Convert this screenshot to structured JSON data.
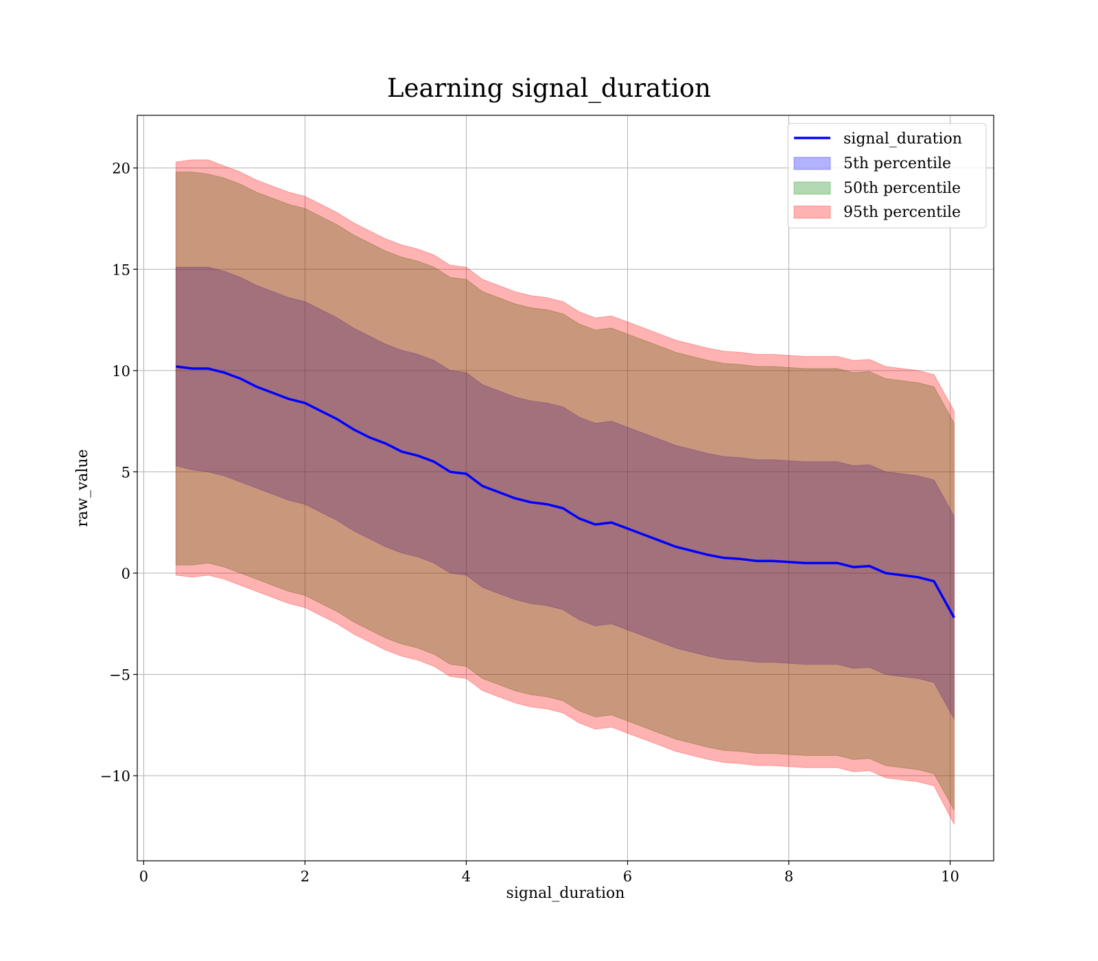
{
  "chart_data": {
    "type": "line",
    "title": "Learning signal_duration",
    "xlabel": "signal_duration",
    "ylabel": "raw_value",
    "xlim": [
      -0.08,
      10.54
    ],
    "ylim": [
      -14.2,
      22.6
    ],
    "xticks": [
      0,
      2,
      4,
      6,
      8,
      10
    ],
    "xtick_labels": [
      "0",
      "2",
      "4",
      "6",
      "8",
      "10"
    ],
    "yticks": [
      -10,
      -5,
      0,
      5,
      10,
      15,
      20
    ],
    "ytick_labels": [
      "−10",
      "−5",
      "0",
      "5",
      "10",
      "15",
      "20"
    ],
    "grid": true,
    "legend_position": "top-right",
    "colors": {
      "line": "#0000ff",
      "p5": "#0000ff",
      "p50": "#008000",
      "p95": "#ff0000",
      "grid": "#b0b0b0"
    },
    "x": [
      0.4,
      0.6,
      0.8,
      1.0,
      1.2,
      1.4,
      1.6,
      1.8,
      2.0,
      2.2,
      2.4,
      2.6,
      2.8,
      3.0,
      3.2,
      3.4,
      3.6,
      3.8,
      4.0,
      4.2,
      4.4,
      4.6,
      4.8,
      5.0,
      5.2,
      5.4,
      5.6,
      5.8,
      6.0,
      6.2,
      6.4,
      6.6,
      6.8,
      7.0,
      7.2,
      7.4,
      7.6,
      7.8,
      8.0,
      8.2,
      8.4,
      8.6,
      8.8,
      9.0,
      9.2,
      9.4,
      9.6,
      9.8,
      10.05
    ],
    "series": [
      {
        "name": "signal_duration",
        "kind": "line",
        "values": [
          10.2,
          10.1,
          10.1,
          9.9,
          9.6,
          9.2,
          8.9,
          8.6,
          8.4,
          8.0,
          7.6,
          7.1,
          6.7,
          6.4,
          6.0,
          5.8,
          5.5,
          5.0,
          4.9,
          4.3,
          4.0,
          3.7,
          3.5,
          3.4,
          3.2,
          2.7,
          2.4,
          2.5,
          2.2,
          1.9,
          1.6,
          1.3,
          1.1,
          0.9,
          0.75,
          0.7,
          0.6,
          0.6,
          0.55,
          0.5,
          0.5,
          0.5,
          0.3,
          0.35,
          0.0,
          -0.1,
          -0.2,
          -0.4,
          -2.2
        ]
      },
      {
        "name": "5th percentile",
        "kind": "band",
        "lower": [
          5.3,
          5.1,
          5.0,
          4.8,
          4.5,
          4.2,
          3.9,
          3.6,
          3.4,
          3.0,
          2.6,
          2.1,
          1.7,
          1.3,
          1.0,
          0.8,
          0.5,
          0.0,
          -0.1,
          -0.7,
          -1.0,
          -1.3,
          -1.5,
          -1.6,
          -1.8,
          -2.3,
          -2.6,
          -2.5,
          -2.8,
          -3.1,
          -3.4,
          -3.7,
          -3.9,
          -4.1,
          -4.25,
          -4.3,
          -4.4,
          -4.4,
          -4.45,
          -4.5,
          -4.5,
          -4.5,
          -4.7,
          -4.65,
          -5.0,
          -5.1,
          -5.2,
          -5.4,
          -7.2
        ],
        "upper": [
          15.1,
          15.1,
          15.1,
          14.9,
          14.6,
          14.2,
          13.9,
          13.6,
          13.4,
          13.0,
          12.6,
          12.1,
          11.7,
          11.3,
          11.0,
          10.8,
          10.5,
          10.0,
          9.9,
          9.3,
          9.0,
          8.7,
          8.5,
          8.4,
          8.2,
          7.7,
          7.4,
          7.5,
          7.2,
          6.9,
          6.6,
          6.3,
          6.1,
          5.9,
          5.75,
          5.7,
          5.6,
          5.6,
          5.55,
          5.5,
          5.5,
          5.5,
          5.3,
          5.35,
          5.0,
          4.9,
          4.8,
          4.6,
          2.8
        ]
      },
      {
        "name": "50th percentile",
        "kind": "band",
        "lower": [
          0.4,
          0.4,
          0.5,
          0.3,
          0.0,
          -0.3,
          -0.6,
          -0.9,
          -1.1,
          -1.5,
          -1.9,
          -2.4,
          -2.8,
          -3.2,
          -3.5,
          -3.7,
          -4.0,
          -4.5,
          -4.6,
          -5.2,
          -5.5,
          -5.8,
          -6.0,
          -6.1,
          -6.3,
          -6.8,
          -7.1,
          -7.0,
          -7.3,
          -7.6,
          -7.9,
          -8.2,
          -8.4,
          -8.6,
          -8.75,
          -8.8,
          -8.9,
          -8.9,
          -8.95,
          -9.0,
          -9.0,
          -9.0,
          -9.2,
          -9.15,
          -9.5,
          -9.6,
          -9.7,
          -9.9,
          -11.7
        ],
        "upper": [
          19.8,
          19.8,
          19.7,
          19.5,
          19.2,
          18.8,
          18.5,
          18.2,
          18.0,
          17.6,
          17.2,
          16.7,
          16.3,
          15.9,
          15.6,
          15.4,
          15.1,
          14.6,
          14.5,
          13.9,
          13.6,
          13.3,
          13.1,
          13.0,
          12.8,
          12.3,
          12.0,
          12.1,
          11.8,
          11.5,
          11.2,
          10.9,
          10.7,
          10.5,
          10.35,
          10.3,
          10.2,
          10.2,
          10.15,
          10.1,
          10.1,
          10.1,
          9.9,
          9.95,
          9.6,
          9.5,
          9.4,
          9.2,
          7.4
        ]
      },
      {
        "name": "95th percentile",
        "kind": "band",
        "lower": [
          -0.1,
          -0.2,
          -0.1,
          -0.3,
          -0.6,
          -0.9,
          -1.2,
          -1.5,
          -1.7,
          -2.1,
          -2.5,
          -3.0,
          -3.4,
          -3.8,
          -4.1,
          -4.3,
          -4.6,
          -5.1,
          -5.2,
          -5.8,
          -6.1,
          -6.4,
          -6.6,
          -6.7,
          -6.9,
          -7.4,
          -7.7,
          -7.6,
          -7.9,
          -8.2,
          -8.5,
          -8.8,
          -9.0,
          -9.2,
          -9.35,
          -9.4,
          -9.5,
          -9.5,
          -9.55,
          -9.6,
          -9.6,
          -9.6,
          -9.8,
          -9.75,
          -10.1,
          -10.2,
          -10.3,
          -10.5,
          -12.4
        ],
        "upper": [
          20.3,
          20.4,
          20.4,
          20.1,
          19.8,
          19.4,
          19.1,
          18.8,
          18.6,
          18.2,
          17.8,
          17.3,
          16.9,
          16.5,
          16.2,
          16.0,
          15.7,
          15.2,
          15.1,
          14.5,
          14.2,
          13.9,
          13.7,
          13.6,
          13.4,
          12.9,
          12.6,
          12.7,
          12.4,
          12.1,
          11.8,
          11.5,
          11.3,
          11.1,
          10.95,
          10.9,
          10.8,
          10.8,
          10.75,
          10.7,
          10.7,
          10.7,
          10.5,
          10.55,
          10.2,
          10.1,
          10.0,
          9.8,
          8.0
        ]
      }
    ]
  }
}
